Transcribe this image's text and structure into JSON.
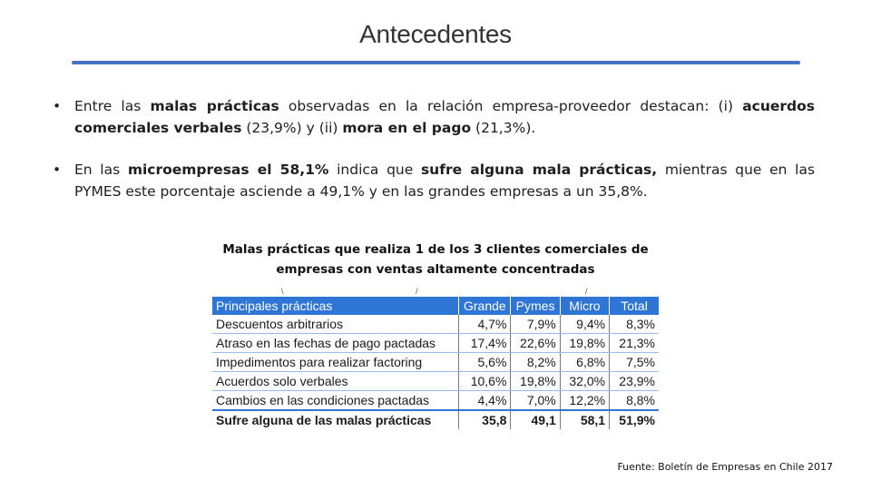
{
  "slide": {
    "title": "Antecedentes"
  },
  "bullets": [
    {
      "runs": [
        {
          "t": "Entre las ",
          "b": false
        },
        {
          "t": "malas prácticas",
          "b": true
        },
        {
          "t": " observadas en la relación empresa-proveedor destacan: (i) ",
          "b": false
        },
        {
          "t": "acuerdos comerciales verbales",
          "b": true
        },
        {
          "t": " (23,9%) y (ii) ",
          "b": false
        },
        {
          "t": "mora en el pago",
          "b": true
        },
        {
          "t": " (21,3%).",
          "b": false
        }
      ]
    },
    {
      "runs": [
        {
          "t": "En las ",
          "b": false
        },
        {
          "t": "microempresas el 58,1%",
          "b": true
        },
        {
          "t": " indica que ",
          "b": false
        },
        {
          "t": "sufre alguna mala prácticas,",
          "b": true
        },
        {
          "t": " mientras que en las PYMES este porcentaje asciende a 49,1% y en las grandes empresas a un 35,8%.",
          "b": false
        }
      ]
    }
  ],
  "table": {
    "caption_line1": "Malas prácticas que realiza 1 de los 3 clientes comerciales de",
    "caption_line2": "empresas con ventas altamente concentradas",
    "headers": [
      "Principales prácticas",
      "Grande",
      "Pymes",
      "Micro",
      "Total"
    ],
    "rows": [
      [
        "Descuentos arbitrarios",
        "4,7%",
        "7,9%",
        "9,4%",
        "8,3%"
      ],
      [
        "Atraso en las fechas de pago pactadas",
        "17,4%",
        "22,6%",
        "19,8%",
        "21,3%"
      ],
      [
        "Impedimentos para realizar factoring",
        "5,6%",
        "8,2%",
        "6,8%",
        "7,5%"
      ],
      [
        "Acuerdos solo verbales",
        "10,6%",
        "19,8%",
        "32,0%",
        "23,9%"
      ],
      [
        "Cambios en las condiciones pactadas",
        "4,4%",
        "7,0%",
        "12,2%",
        "8,8%"
      ]
    ],
    "total_row": [
      "Sufre alguna de las malas prácticas",
      "35,8",
      "49,1",
      "58,1",
      "51,9%"
    ]
  },
  "source": "Fuente: Boletín de Empresas en Chile 2017",
  "colors": {
    "accent": "#4472c4",
    "table_header": "#2e75d6"
  }
}
